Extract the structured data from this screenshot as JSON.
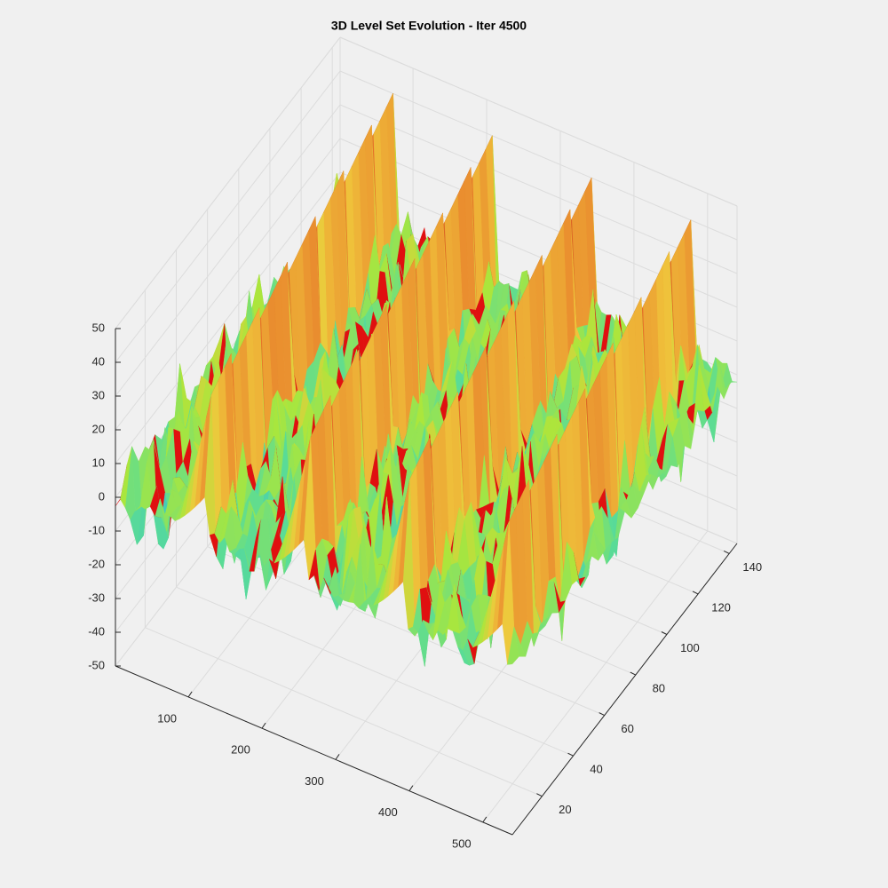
{
  "chart_data": {
    "type": "surface",
    "title": "3D Level Set Evolution - Iter 4500",
    "xlim": [
      1,
      540
    ],
    "xticks": [
      100,
      200,
      300,
      400,
      500
    ],
    "ylim": [
      1,
      145
    ],
    "yticks": [
      20,
      40,
      60,
      80,
      100,
      120,
      140
    ],
    "zlim": [
      -50,
      50
    ],
    "zticks": [
      -50,
      -40,
      -30,
      -20,
      -10,
      0,
      10,
      20,
      30,
      40,
      50
    ],
    "grid": true
  }
}
